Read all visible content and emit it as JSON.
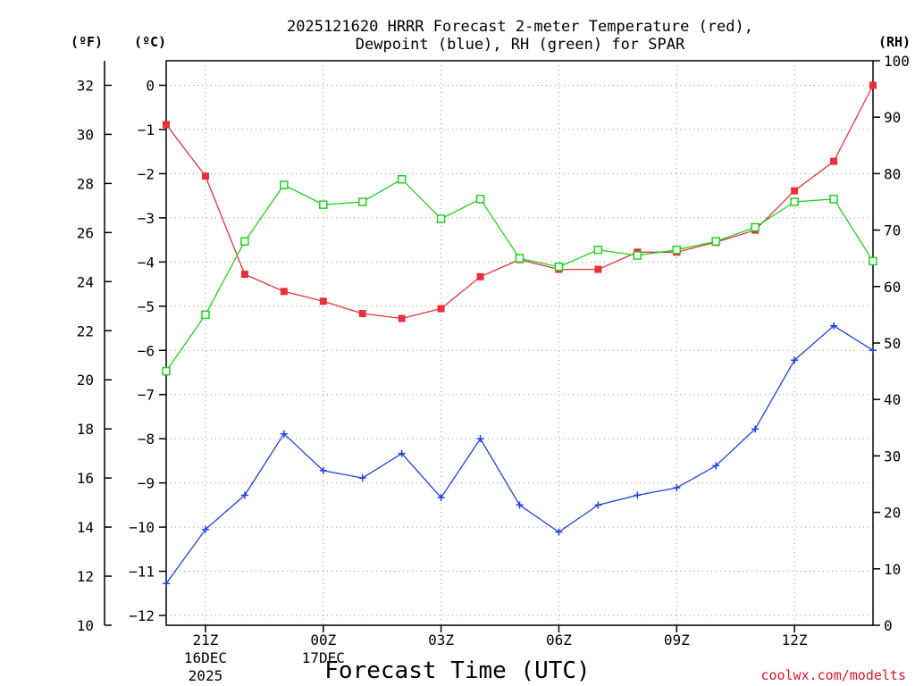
{
  "chart_data": {
    "type": "line",
    "title_lines": [
      "2025121620 HRRR Forecast 2-meter Temperature (red),",
      "Dewpoint (blue), RH (green) for SPAR"
    ],
    "xlabel": "Forecast Time (UTC)",
    "credit": "coolwx.com/modelts",
    "units": {
      "left_f": "(ºF)",
      "left_c": "(ºC)",
      "right": "(RH)"
    },
    "x_hours_utc": [
      "20Z",
      "21Z",
      "22Z",
      "23Z",
      "00Z",
      "01Z",
      "02Z",
      "03Z",
      "04Z",
      "05Z",
      "06Z",
      "07Z",
      "08Z",
      "09Z",
      "10Z",
      "11Z",
      "12Z",
      "13Z",
      "14Z"
    ],
    "x_ticks": [
      {
        "label": "21Z",
        "sub": [
          "16DEC",
          "2025"
        ],
        "index": 1
      },
      {
        "label": "00Z",
        "sub": [
          "17DEC"
        ],
        "index": 4
      },
      {
        "label": "03Z",
        "sub": [],
        "index": 7
      },
      {
        "label": "06Z",
        "sub": [],
        "index": 10
      },
      {
        "label": "09Z",
        "sub": [],
        "index": 13
      },
      {
        "label": "12Z",
        "sub": [],
        "index": 16
      }
    ],
    "y_left_f": {
      "range": [
        10,
        33
      ],
      "ticks": [
        "10",
        "12",
        "14",
        "16",
        "18",
        "20",
        "22",
        "24",
        "26",
        "28",
        "30",
        "32"
      ]
    },
    "y_left_c": {
      "range": [
        -12.222,
        0.556
      ],
      "ticks": [
        "0",
        "−1",
        "−2",
        "−3",
        "−4",
        "−5",
        "−6",
        "−7",
        "−8",
        "−9",
        "−10",
        "−11",
        "−12"
      ]
    },
    "y_right_rh": {
      "range": [
        0,
        100
      ],
      "ticks": [
        "0",
        "10",
        "20",
        "30",
        "40",
        "50",
        "60",
        "70",
        "80",
        "90",
        "100"
      ]
    },
    "series": [
      {
        "name": "Temperature",
        "axis": "left_f",
        "color": "#e8303a",
        "marker": "filled-square",
        "values": [
          30.4,
          28.3,
          24.3,
          23.6,
          23.2,
          22.7,
          22.5,
          22.9,
          24.2,
          24.9,
          24.5,
          24.5,
          25.2,
          25.2,
          25.6,
          26.1,
          27.7,
          28.9,
          32.0
        ]
      },
      {
        "name": "Dewpoint",
        "axis": "left_f",
        "color": "#2040e0",
        "marker": "plus",
        "values": [
          11.7,
          13.9,
          15.3,
          17.8,
          16.3,
          16.0,
          17.0,
          15.2,
          17.6,
          14.9,
          13.8,
          14.9,
          15.3,
          15.6,
          16.5,
          18.0,
          20.8,
          22.2,
          21.2
        ]
      },
      {
        "name": "RH",
        "axis": "right",
        "color": "#20d020",
        "marker": "open-square",
        "values": [
          45,
          55,
          68,
          78,
          74.5,
          75,
          79,
          72,
          75.5,
          65,
          63.5,
          66.5,
          65.5,
          66.5,
          68,
          70.5,
          75,
          75.5,
          64.5
        ]
      }
    ]
  }
}
